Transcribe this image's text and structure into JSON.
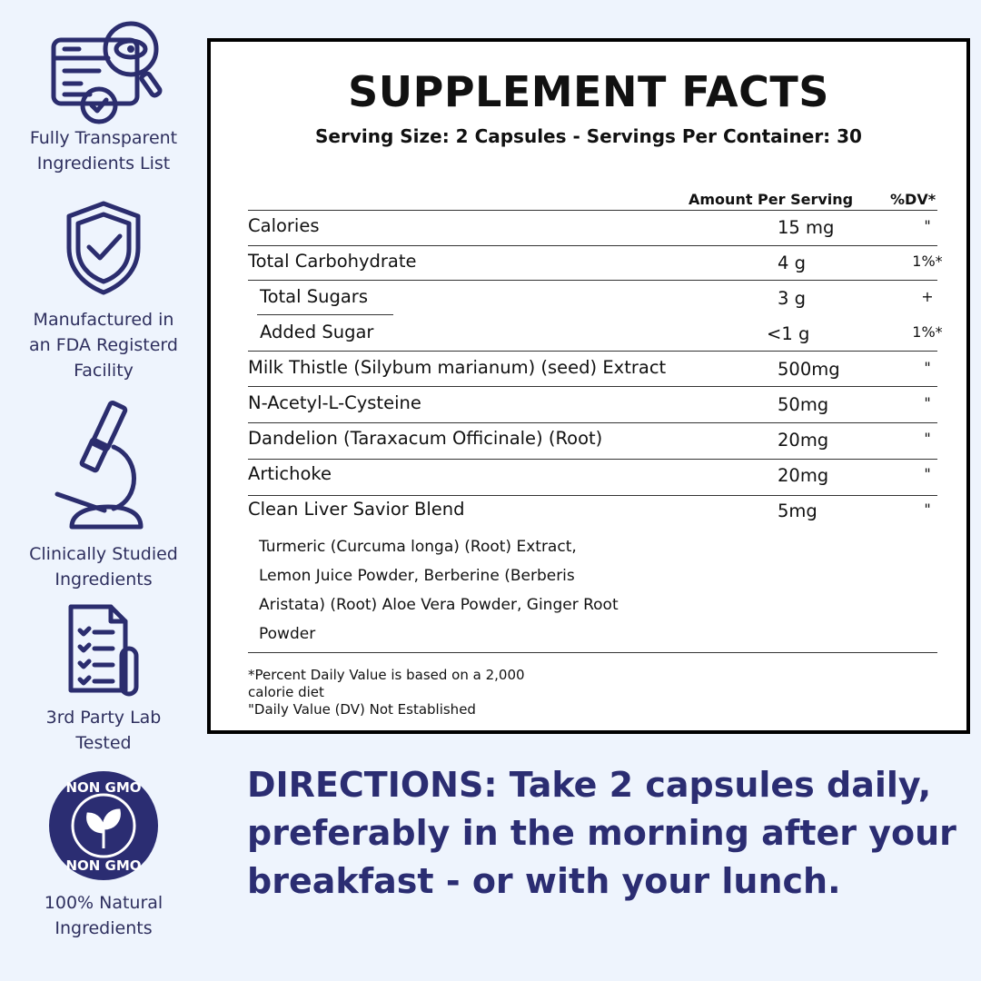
{
  "sidebar": {
    "features": [
      {
        "label_lines": [
          "Fully Transparent",
          "Ingredients List"
        ],
        "icon": "document-magnifier-check-icon"
      },
      {
        "label_lines": [
          "Manufactured in",
          "an FDA Registerd",
          "Facility"
        ],
        "icon": "shield-check-icon"
      },
      {
        "label_lines": [
          "Clinically Studied",
          "Ingredients"
        ],
        "icon": "microscope-icon"
      },
      {
        "label_lines": [
          "3rd Party Lab",
          "Tested"
        ],
        "icon": "lab-report-icon"
      },
      {
        "label_lines": [
          "100% Natural",
          "Ingredients"
        ],
        "icon": "non-gmo-badge-icon",
        "badge_text": "NON GMO"
      }
    ]
  },
  "facts": {
    "title": "SUPPLEMENT FACTS",
    "serving": "Serving Size: 2 Capsules - Servings Per Container: 30",
    "col_amount": "Amount Per Serving",
    "col_dv": "%DV*",
    "rows": [
      {
        "name": "Calories",
        "amount": "15 mg",
        "dv": "\""
      },
      {
        "name": "Total Carbohydrate",
        "amount": "4 g",
        "dv": "1%*"
      },
      {
        "name": "Total Sugars",
        "amount": "3 g",
        "dv": "+"
      },
      {
        "name": "Added Sugar",
        "amount": "<1 g",
        "dv": "1%*"
      },
      {
        "name": "Milk Thistle (Silybum marianum) (seed) Extract",
        "amount": "500mg",
        "dv": "\""
      },
      {
        "name": "N-Acetyl-L-Cysteine",
        "amount": "50mg",
        "dv": "\""
      },
      {
        "name": "Dandelion (Taraxacum Officinale) (Root)",
        "amount": "20mg",
        "dv": "\""
      },
      {
        "name": "Artichoke",
        "amount": "20mg",
        "dv": "\""
      },
      {
        "name": "Clean Liver Savior Blend",
        "amount": "5mg",
        "dv": "\""
      }
    ],
    "blend_lines": [
      "Turmeric (Curcuma longa) (Root) Extract,",
      "Lemon Juice Powder, Berberine (Berberis",
      "Aristata) (Root) Aloe Vera Powder, Ginger Root",
      "Powder"
    ],
    "footnotes": [
      "*Percent Daily Value is based on a 2,000",
      "calorie diet",
      "\"Daily Value (DV) Not Established"
    ]
  },
  "directions": {
    "lines": [
      "DIRECTIONS: Take 2 capsules daily,",
      "preferably in the morning after your",
      "breakfast - or with your lunch."
    ]
  },
  "colors": {
    "background": "#eef4fd",
    "navy": "#2b2d72"
  }
}
